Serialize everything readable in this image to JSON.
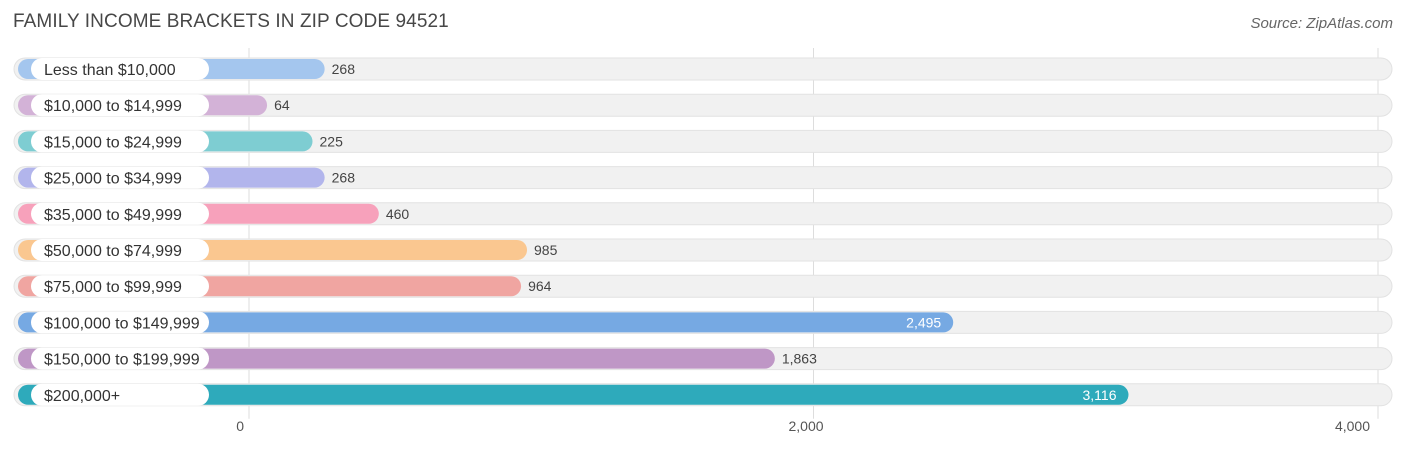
{
  "header": {
    "title": "FAMILY INCOME BRACKETS IN ZIP CODE 94521",
    "source": "Source: ZipAtlas.com"
  },
  "chart_data": {
    "type": "bar",
    "orientation": "horizontal",
    "title": "FAMILY INCOME BRACKETS IN ZIP CODE 94521",
    "categories": [
      "Less than $10,000",
      "$10,000 to $14,999",
      "$15,000 to $24,999",
      "$25,000 to $34,999",
      "$35,000 to $49,999",
      "$50,000 to $74,999",
      "$75,000 to $99,999",
      "$100,000 to $149,999",
      "$150,000 to $199,999",
      "$200,000+"
    ],
    "values": [
      268,
      64,
      225,
      268,
      460,
      985,
      964,
      2495,
      1863,
      3116
    ],
    "value_labels": [
      "268",
      "64",
      "225",
      "268",
      "460",
      "985",
      "964",
      "2,495",
      "1,863",
      "3,116"
    ],
    "colors": [
      "#a4c6ee",
      "#d3b2d7",
      "#7ecdd2",
      "#b2b5ec",
      "#f7a1bb",
      "#fac790",
      "#f0a5a1",
      "#76a9e3",
      "#bf97c6",
      "#2eaabb"
    ],
    "xlim": [
      0,
      4000
    ],
    "xticks": [
      0,
      2000,
      4000
    ],
    "xtick_labels": [
      "0",
      "2,000",
      "4,000"
    ],
    "grid": true
  }
}
